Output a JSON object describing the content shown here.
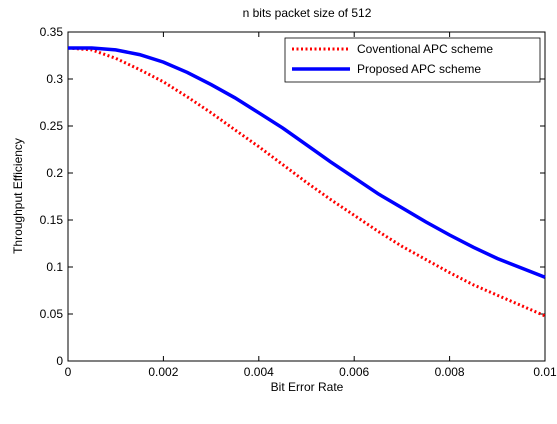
{
  "chart_data": {
    "type": "line",
    "title": "n bits packet size of 512",
    "xlabel": "Bit Error Rate",
    "ylabel": "Throughput Efficiency",
    "xlim": [
      0,
      0.01
    ],
    "ylim": [
      0,
      0.35
    ],
    "xticks": [
      0,
      0.002,
      0.004,
      0.006,
      0.008,
      0.01
    ],
    "xtick_labels": [
      "0",
      "0.002",
      "0.004",
      "0.006",
      "0.008",
      "0.01"
    ],
    "yticks": [
      0,
      0.05,
      0.1,
      0.15,
      0.2,
      0.25,
      0.3,
      0.35
    ],
    "ytick_labels": [
      "0",
      "0.05",
      "0.1",
      "0.15",
      "0.2",
      "0.25",
      "0.3",
      "0.35"
    ],
    "grid": false,
    "legend_position": "top-right",
    "series": [
      {
        "name": "Coventional APC scheme",
        "color": "#ff0000",
        "style": "dotted",
        "x": [
          0,
          0.0005,
          0.001,
          0.0015,
          0.002,
          0.0025,
          0.003,
          0.0035,
          0.004,
          0.0045,
          0.005,
          0.0055,
          0.006,
          0.0065,
          0.007,
          0.0075,
          0.008,
          0.0085,
          0.009,
          0.0095,
          0.01
        ],
        "y": [
          0.333,
          0.331,
          0.322,
          0.31,
          0.297,
          0.281,
          0.264,
          0.246,
          0.228,
          0.209,
          0.19,
          0.172,
          0.155,
          0.138,
          0.122,
          0.108,
          0.094,
          0.081,
          0.07,
          0.059,
          0.048
        ]
      },
      {
        "name": "Proposed APC scheme",
        "color": "#0000ff",
        "style": "solid",
        "x": [
          0,
          0.0005,
          0.001,
          0.0015,
          0.002,
          0.0025,
          0.003,
          0.0035,
          0.004,
          0.0045,
          0.005,
          0.0055,
          0.006,
          0.0065,
          0.007,
          0.0075,
          0.008,
          0.0085,
          0.009,
          0.0095,
          0.01
        ],
        "y": [
          0.333,
          0.333,
          0.331,
          0.326,
          0.318,
          0.307,
          0.294,
          0.28,
          0.264,
          0.248,
          0.23,
          0.212,
          0.195,
          0.178,
          0.163,
          0.148,
          0.134,
          0.121,
          0.109,
          0.099,
          0.089
        ]
      }
    ]
  }
}
